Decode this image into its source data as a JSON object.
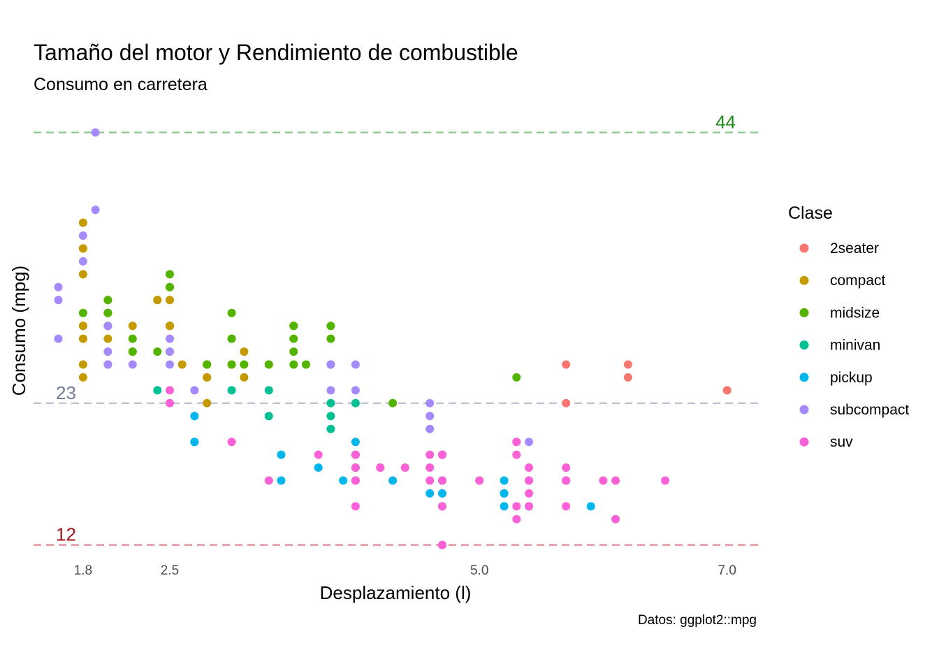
{
  "chart_data": {
    "type": "scatter",
    "title": "Tamaño del motor y Rendimiento de combustible",
    "subtitle": "Consumo en carretera",
    "xlabel": "Desplazamiento (l)",
    "ylabel": "Consumo (mpg)",
    "caption": "Datos: ggplot2::mpg",
    "xlim": [
      1.4,
      7.25
    ],
    "ylim": [
      10.9,
      45.6
    ],
    "x_ticks": [
      {
        "value": 1.8,
        "label": "1.8"
      },
      {
        "value": 2.5,
        "label": "2.5"
      },
      {
        "value": 5.0,
        "label": "5.0"
      },
      {
        "value": 7.0,
        "label": "7.0"
      }
    ],
    "grid": false,
    "legend": {
      "title": "Clase",
      "position": "right",
      "entries": [
        {
          "name": "2seater",
          "color": "#F8766D"
        },
        {
          "name": "compact",
          "color": "#C49A00"
        },
        {
          "name": "midsize",
          "color": "#53B400"
        },
        {
          "name": "minivan",
          "color": "#00C094"
        },
        {
          "name": "pickup",
          "color": "#00B6EB"
        },
        {
          "name": "subcompact",
          "color": "#A58AFF"
        },
        {
          "name": "suv",
          "color": "#FB61D7"
        }
      ]
    },
    "reference_lines": [
      {
        "value": 44,
        "label": "44",
        "color": "#8CC98C",
        "label_color": "#1E8A1E",
        "label_position": "right"
      },
      {
        "value": 23,
        "label": "23",
        "color": "#B4BECE",
        "label_color": "#707C94",
        "label_position": "left"
      },
      {
        "value": 12,
        "label": "12",
        "color": "#DB8590",
        "label_color": "#A0141E",
        "label_position": "left"
      }
    ],
    "series": [
      {
        "name": "2seater",
        "points": [
          [
            5.7,
            26
          ],
          [
            5.7,
            23
          ],
          [
            6.2,
            26
          ],
          [
            6.2,
            25
          ],
          [
            7.0,
            24
          ]
        ]
      },
      {
        "name": "compact",
        "points": [
          [
            1.8,
            29
          ],
          [
            1.8,
            29
          ],
          [
            2.0,
            31
          ],
          [
            2.0,
            30
          ],
          [
            2.8,
            26
          ],
          [
            2.8,
            26
          ],
          [
            3.1,
            27
          ],
          [
            1.8,
            26
          ],
          [
            1.8,
            25
          ],
          [
            1.8,
            28
          ],
          [
            2.0,
            28
          ],
          [
            2.0,
            29
          ],
          [
            2.8,
            25
          ],
          [
            2.8,
            25
          ],
          [
            3.1,
            25
          ],
          [
            2.2,
            27
          ],
          [
            2.2,
            29
          ],
          [
            2.4,
            31
          ],
          [
            2.4,
            31
          ],
          [
            3.0,
            26
          ],
          [
            3.0,
            26
          ],
          [
            3.3,
            26
          ],
          [
            1.8,
            33
          ],
          [
            1.8,
            35
          ],
          [
            1.8,
            37
          ],
          [
            1.8,
            35
          ],
          [
            2.0,
            29
          ],
          [
            2.0,
            26
          ],
          [
            2.5,
            29
          ],
          [
            2.5,
            29
          ],
          [
            2.8,
            23
          ],
          [
            2.5,
            29
          ],
          [
            2.5,
            31
          ],
          [
            2.5,
            29
          ],
          [
            2.6,
            26
          ]
        ]
      },
      {
        "name": "midsize",
        "points": [
          [
            2.4,
            27
          ],
          [
            3.1,
            26
          ],
          [
            3.5,
            29
          ],
          [
            3.6,
            26
          ],
          [
            3.3,
            26
          ],
          [
            3.8,
            29
          ],
          [
            3.8,
            26
          ],
          [
            4.3,
            23
          ],
          [
            2.0,
            30
          ],
          [
            2.0,
            30
          ],
          [
            2.5,
            32
          ],
          [
            2.5,
            27
          ],
          [
            3.0,
            28
          ],
          [
            3.0,
            30
          ],
          [
            3.5,
            29
          ],
          [
            3.5,
            28
          ],
          [
            2.5,
            33
          ],
          [
            2.5,
            32
          ],
          [
            3.0,
            28
          ],
          [
            3.0,
            26
          ],
          [
            3.5,
            26
          ],
          [
            3.5,
            27
          ],
          [
            1.8,
            30
          ],
          [
            2.0,
            31
          ],
          [
            2.8,
            26
          ],
          [
            3.8,
            28
          ],
          [
            5.3,
            25
          ],
          [
            2.2,
            27
          ],
          [
            2.2,
            28
          ]
        ]
      },
      {
        "name": "minivan",
        "points": [
          [
            2.4,
            24
          ],
          [
            3.0,
            24
          ],
          [
            3.3,
            22
          ],
          [
            3.3,
            24
          ],
          [
            3.8,
            23
          ],
          [
            3.8,
            21
          ],
          [
            3.8,
            22
          ],
          [
            4.0,
            23
          ]
        ]
      },
      {
        "name": "pickup",
        "points": [
          [
            2.7,
            20
          ],
          [
            2.7,
            20
          ],
          [
            3.4,
            17
          ],
          [
            3.4,
            19
          ],
          [
            4.0,
            19
          ],
          [
            4.7,
            17
          ],
          [
            4.7,
            16
          ],
          [
            4.7,
            17
          ],
          [
            5.2,
            15
          ],
          [
            5.2,
            16
          ],
          [
            5.7,
            17
          ],
          [
            5.9,
            15
          ],
          [
            3.7,
            18
          ],
          [
            3.9,
            17
          ],
          [
            4.7,
            15
          ],
          [
            5.2,
            17
          ],
          [
            5.2,
            16
          ],
          [
            4.0,
            18
          ],
          [
            4.0,
            17
          ],
          [
            4.6,
            16
          ],
          [
            5.4,
            15
          ],
          [
            2.7,
            22
          ],
          [
            4.3,
            17
          ],
          [
            4.0,
            20
          ]
        ]
      },
      {
        "name": "subcompact",
        "points": [
          [
            2.5,
            28
          ],
          [
            2.5,
            27
          ],
          [
            2.5,
            26
          ],
          [
            3.8,
            26
          ],
          [
            3.8,
            24
          ],
          [
            4.6,
            23
          ],
          [
            4.6,
            21
          ],
          [
            5.4,
            20
          ],
          [
            4.6,
            22
          ],
          [
            1.6,
            28
          ],
          [
            1.6,
            32
          ],
          [
            1.6,
            31
          ],
          [
            1.9,
            38
          ],
          [
            1.9,
            44
          ],
          [
            1.8,
            34
          ],
          [
            1.8,
            36
          ],
          [
            2.0,
            27
          ],
          [
            2.0,
            26
          ],
          [
            2.2,
            26
          ],
          [
            2.7,
            24
          ],
          [
            2.0,
            29
          ],
          [
            4.0,
            24
          ],
          [
            4.0,
            26
          ]
        ]
      },
      {
        "name": "suv",
        "points": [
          [
            5.3,
            20
          ],
          [
            5.3,
            15
          ],
          [
            5.3,
            20
          ],
          [
            5.7,
            17
          ],
          [
            6.0,
            17
          ],
          [
            5.7,
            17
          ],
          [
            5.7,
            15
          ],
          [
            6.5,
            17
          ],
          [
            4.0,
            19
          ],
          [
            4.0,
            19
          ],
          [
            4.6,
            19
          ],
          [
            5.0,
            17
          ],
          [
            3.7,
            19
          ],
          [
            4.7,
            17
          ],
          [
            4.7,
            12
          ],
          [
            4.7,
            12
          ],
          [
            4.7,
            12
          ],
          [
            4.7,
            19
          ],
          [
            5.7,
            18
          ],
          [
            6.1,
            17
          ],
          [
            4.0,
            19
          ],
          [
            4.2,
            18
          ],
          [
            4.4,
            18
          ],
          [
            4.6,
            17
          ],
          [
            5.4,
            17
          ],
          [
            5.4,
            18
          ],
          [
            5.4,
            16
          ],
          [
            4.0,
            18
          ],
          [
            4.0,
            17
          ],
          [
            4.6,
            18
          ],
          [
            5.0,
            17
          ],
          [
            4.2,
            18
          ],
          [
            3.3,
            17
          ],
          [
            4.0,
            15
          ],
          [
            2.5,
            24
          ],
          [
            2.5,
            23
          ],
          [
            3.0,
            20
          ],
          [
            4.7,
            19
          ],
          [
            5.3,
            14
          ],
          [
            5.4,
            15
          ],
          [
            5.3,
            19
          ],
          [
            6.1,
            14
          ],
          [
            5.4,
            17
          ],
          [
            4.7,
            15
          ],
          [
            4.0,
            17
          ],
          [
            4.7,
            19
          ]
        ]
      }
    ]
  }
}
